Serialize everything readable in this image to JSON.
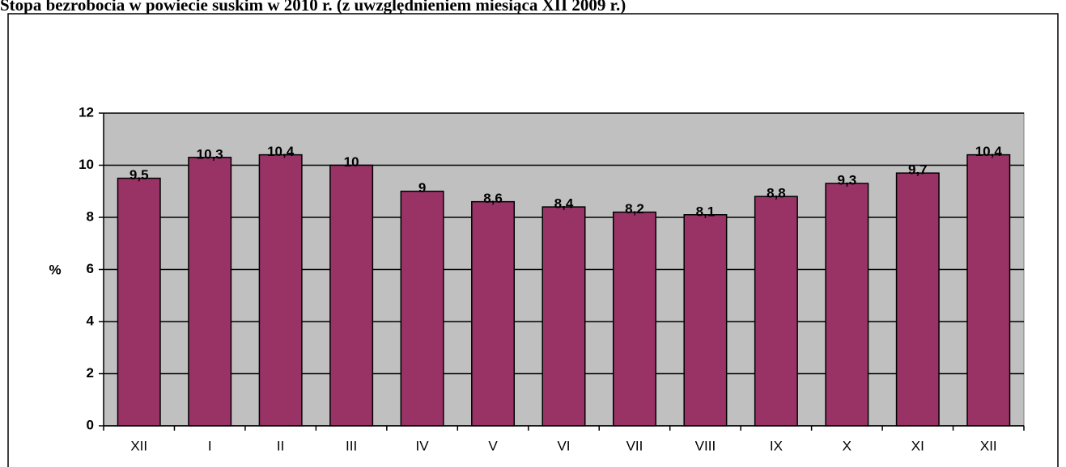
{
  "chart_data": {
    "type": "bar",
    "title": "Stopa bezrobocia w powiecie suskim w 2010 r. (z uwzględnieniem miesiąca XII 2009 r.)",
    "ylabel": "%",
    "categories": [
      "XII",
      "I",
      "II",
      "III",
      "IV",
      "V",
      "VI",
      "VII",
      "VIII",
      "IX",
      "X",
      "XI",
      "XII"
    ],
    "values": [
      9.5,
      10.3,
      10.4,
      10,
      9,
      8.6,
      8.4,
      8.2,
      8.1,
      8.8,
      9.3,
      9.7,
      10.4
    ],
    "value_labels": [
      "9,5",
      "10,3",
      "10,4",
      "10",
      "9",
      "8,6",
      "8,4",
      "8,2",
      "8,1",
      "8,8",
      "9,3",
      "9,7",
      "10,4"
    ],
    "color": "#993366",
    "ylim": [
      0,
      12
    ],
    "yticks": [
      0,
      2,
      4,
      6,
      8,
      10,
      12
    ],
    "grid": true
  }
}
